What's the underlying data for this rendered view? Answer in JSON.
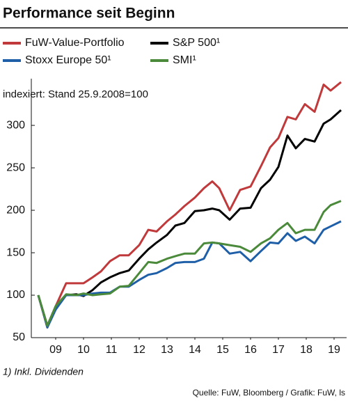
{
  "chart_data": {
    "type": "line",
    "title": "Performance seit Beginn",
    "subtitle": "indexiert: Stand 25.9.2008=100",
    "footnote": "1) Inkl. Dividenden",
    "source": "Quelle: FuW, Bloomberg / Grafik: FuW, ls",
    "x": [
      2008.875,
      2009.2,
      2009.5,
      2009.875,
      2010.25,
      2010.5,
      2010.825,
      2011.125,
      2011.45,
      2011.8,
      2012.125,
      2012.5,
      2012.825,
      2013.125,
      2013.5,
      2013.8,
      2014.125,
      2014.5,
      2014.825,
      2015.125,
      2015.375,
      2015.75,
      2016.125,
      2016.5,
      2016.875,
      2017.2,
      2017.5,
      2017.825,
      2018.125,
      2018.45,
      2018.8,
      2019.125,
      2019.375,
      2019.75
    ],
    "series": [
      {
        "name": "FuW-Value-Portfolio",
        "color": "#c0393b",
        "values": [
          100,
          62,
          87,
          114,
          114,
          114,
          121,
          128,
          140,
          147,
          147,
          159,
          177,
          175,
          187,
          195,
          205,
          215,
          226,
          234,
          226,
          200,
          224,
          228,
          252,
          274,
          285,
          310,
          307,
          325,
          316,
          348,
          341,
          351
        ]
      },
      {
        "name": "S&P 500¹",
        "color": "#000000",
        "values": [
          100,
          64,
          87,
          100,
          101,
          99,
          106,
          115,
          121,
          126,
          129,
          143,
          154,
          162,
          171,
          182,
          185,
          199,
          200,
          202,
          200,
          189,
          202,
          203,
          226,
          236,
          251,
          288,
          273,
          284,
          281,
          302,
          307,
          318
        ]
      },
      {
        "name": "Stoxx Europe 50¹",
        "color": "#1f5fa8",
        "values": [
          100,
          62,
          83,
          100,
          100,
          100,
          102,
          103,
          103,
          110,
          110,
          118,
          124,
          126,
          132,
          138,
          139,
          139,
          143,
          162,
          161,
          149,
          151,
          140,
          152,
          162,
          161,
          173,
          164,
          169,
          161,
          177,
          181,
          187
        ]
      },
      {
        "name": "SMI¹",
        "color": "#4a8a3a",
        "values": [
          100,
          64,
          87,
          101,
          100,
          102,
          100,
          101,
          102,
          110,
          111,
          126,
          139,
          138,
          143,
          146,
          149,
          149,
          161,
          162,
          161,
          159,
          157,
          151,
          161,
          167,
          177,
          185,
          173,
          177,
          177,
          198,
          206,
          211
        ]
      }
    ],
    "xlim": [
      2008.625,
      2019.9
    ],
    "xticks": [
      {
        "value": 2009.5,
        "label": "09"
      },
      {
        "value": 2010.5,
        "label": "10"
      },
      {
        "value": 2011.5,
        "label": "11"
      },
      {
        "value": 2012.5,
        "label": "12"
      },
      {
        "value": 2013.5,
        "label": "13"
      },
      {
        "value": 2014.5,
        "label": "14"
      },
      {
        "value": 2015.5,
        "label": "15"
      },
      {
        "value": 2016.5,
        "label": "16"
      },
      {
        "value": 2017.5,
        "label": "17"
      },
      {
        "value": 2018.5,
        "label": "18"
      },
      {
        "value": 2019.5,
        "label": "19"
      }
    ],
    "ylim": [
      50,
      355
    ],
    "yticks": [
      50,
      100,
      150,
      200,
      250,
      300
    ],
    "grid": false
  }
}
